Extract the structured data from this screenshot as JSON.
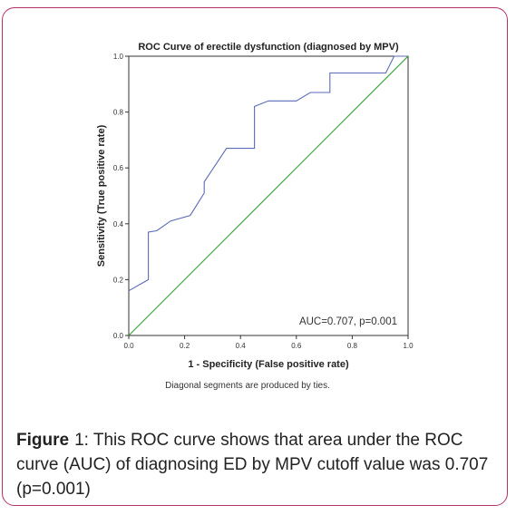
{
  "chart_data": {
    "type": "line",
    "title": "ROC Curve of erectile dysfunction (diagnosed by MPV)",
    "xlabel": "1 - Specificity (False positive rate)",
    "ylabel": "Sensitivity (True positive rate)",
    "xlim": [
      0,
      1
    ],
    "ylim": [
      0,
      1
    ],
    "x_ticks": [
      "0.0",
      "0.2",
      "0.4",
      "0.6",
      "0.8",
      "1.0"
    ],
    "y_ticks": [
      "0.0",
      "0.2",
      "0.4",
      "0.6",
      "0.8",
      "1.0"
    ],
    "annotation": "AUC=0.707, p=0.001",
    "footnote": "Diagonal segments are produced by ties.",
    "grid": false,
    "series": [
      {
        "color": "#5a6bb8",
        "x": [
          0.0,
          0.07,
          0.07,
          0.1,
          0.15,
          0.22,
          0.27,
          0.27,
          0.35,
          0.45,
          0.45,
          0.5,
          0.6,
          0.65,
          0.72,
          0.72,
          0.8,
          0.92,
          0.95,
          1.0
        ],
        "y": [
          0.16,
          0.2,
          0.37,
          0.375,
          0.41,
          0.43,
          0.51,
          0.55,
          0.67,
          0.67,
          0.82,
          0.84,
          0.84,
          0.87,
          0.87,
          0.94,
          0.94,
          0.94,
          1.0,
          1.0
        ]
      },
      {
        "color": "#2ca02c",
        "x": [
          0,
          1
        ],
        "y": [
          0,
          1
        ]
      }
    ]
  },
  "caption": {
    "figure_label": "Figure",
    "figure_number": "1",
    "text": ":   This ROC curve shows that area under the ROC curve (AUC) of diagnosing ED by MPV cutoff value was 0.707 (p=0.001)"
  }
}
